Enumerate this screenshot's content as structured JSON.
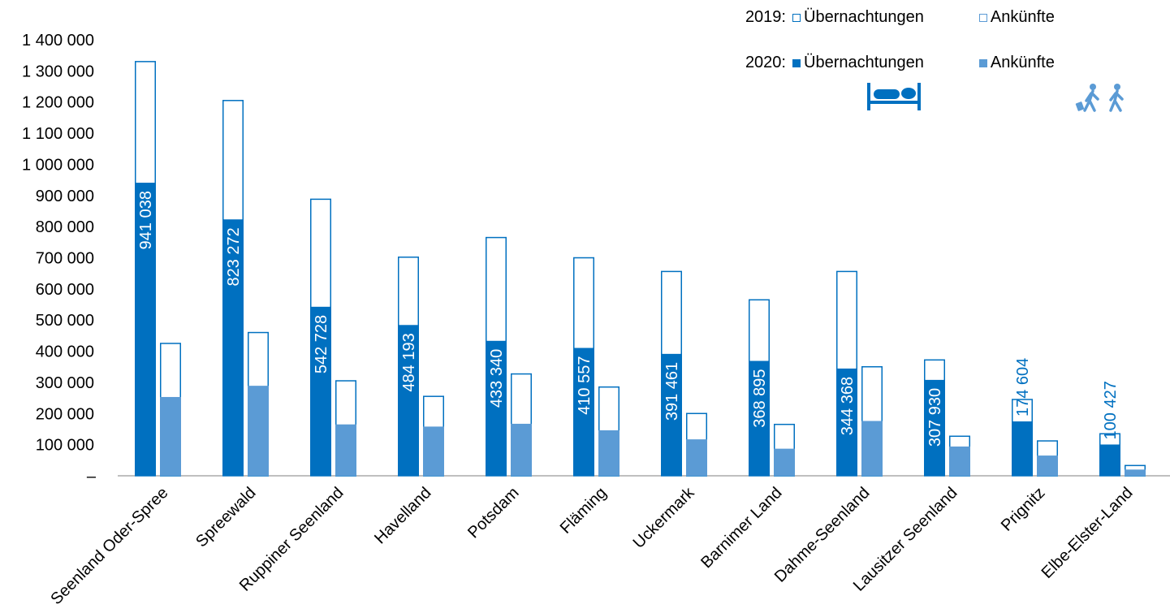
{
  "legend": {
    "year_2019": "2019:",
    "year_2020": "2020:",
    "overnight": "Übernachtungen",
    "arrivals": "Ankünfte",
    "bed_icon": "bed-icon",
    "traveler_icon": "travelers-icon"
  },
  "colors": {
    "overnight": "#0070C0",
    "arrivals": "#5B9BD5",
    "axis": "#7f7f7f"
  },
  "chart_data": {
    "type": "bar",
    "categories": [
      "Seenland Oder-Spree",
      "Spreewald",
      "Ruppiner Seenland",
      "Havelland",
      "Potsdam",
      "Fläming",
      "Uckermark",
      "Barnimer Land",
      "Dahme-Seenland",
      "Lausitzer Seenland",
      "Prignitz",
      "Elbe-Elster-Land"
    ],
    "series": [
      {
        "name": "2019: Übernachtungen",
        "values": [
          1330000,
          1205000,
          888000,
          702000,
          765000,
          700000,
          656000,
          565000,
          656000,
          372000,
          245000,
          135000
        ],
        "style": "outline"
      },
      {
        "name": "2020: Übernachtungen",
        "values": [
          941038,
          823272,
          542728,
          484193,
          433340,
          410557,
          391461,
          368895,
          344368,
          307930,
          174604,
          100427
        ],
        "style": "filled"
      },
      {
        "name": "2019: Ankünfte",
        "values": [
          425000,
          460000,
          305000,
          255000,
          327000,
          285000,
          200000,
          165000,
          350000,
          127000,
          112000,
          33000
        ],
        "style": "outline"
      },
      {
        "name": "2020: Ankünfte",
        "values": [
          253000,
          289000,
          165000,
          158000,
          167000,
          146000,
          117000,
          87000,
          176000,
          94000,
          65000,
          20000
        ],
        "style": "filled"
      }
    ],
    "data_labels": [
      "941 038",
      "823 272",
      "542 728",
      "484 193",
      "433 340",
      "410 557",
      "391 461",
      "368 895",
      "344 368",
      "307 930",
      "174 604",
      "100 427"
    ],
    "ylim": [
      0,
      1400000
    ],
    "yticks": [
      0,
      100000,
      200000,
      300000,
      400000,
      500000,
      600000,
      700000,
      800000,
      900000,
      1000000,
      1100000,
      1200000,
      1300000,
      1400000
    ],
    "ytick_labels": [
      "–",
      "100 000",
      "200 000",
      "300 000",
      "400 000",
      "500 000",
      "600 000",
      "700 000",
      "800 000",
      "900 000",
      "1 000 000",
      "1 100 000",
      "1 200 000",
      "1 300 000",
      "1 400 000"
    ],
    "grid": false,
    "legend_position": "top-right"
  }
}
